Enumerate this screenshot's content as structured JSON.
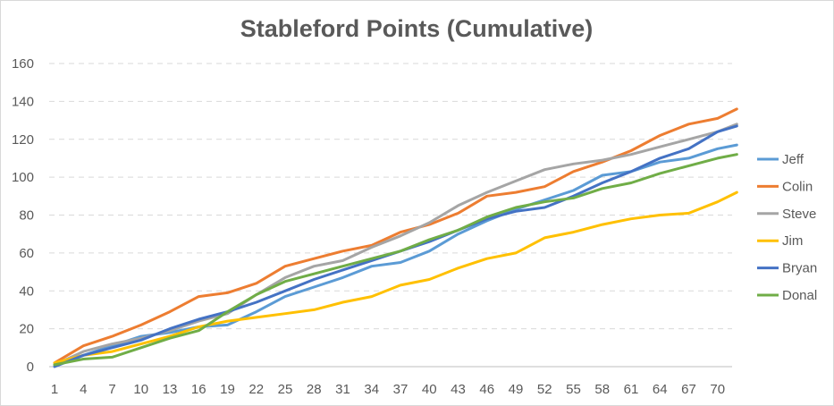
{
  "chart_data": {
    "type": "line",
    "title": "Stableford Points (Cumulative)",
    "xlabel": "",
    "ylabel": "",
    "ylim": [
      0,
      160
    ],
    "yticks": [
      0,
      20,
      40,
      60,
      80,
      100,
      120,
      140,
      160
    ],
    "xlim": [
      1,
      72
    ],
    "xticks": [
      1,
      4,
      7,
      10,
      13,
      16,
      19,
      22,
      25,
      28,
      31,
      34,
      37,
      40,
      43,
      46,
      49,
      52,
      55,
      58,
      61,
      64,
      67,
      70
    ],
    "grid": true,
    "legend_position": "right",
    "series": [
      {
        "name": "Jeff",
        "color": "#5B9BD5",
        "points": [
          [
            1,
            1
          ],
          [
            4,
            6
          ],
          [
            7,
            11
          ],
          [
            10,
            16
          ],
          [
            13,
            18
          ],
          [
            16,
            21
          ],
          [
            19,
            22
          ],
          [
            22,
            29
          ],
          [
            25,
            37
          ],
          [
            28,
            42
          ],
          [
            31,
            47
          ],
          [
            34,
            53
          ],
          [
            37,
            55
          ],
          [
            40,
            61
          ],
          [
            43,
            70
          ],
          [
            46,
            77
          ],
          [
            49,
            83
          ],
          [
            52,
            88
          ],
          [
            55,
            93
          ],
          [
            58,
            101
          ],
          [
            61,
            103
          ],
          [
            64,
            108
          ],
          [
            67,
            110
          ],
          [
            70,
            115
          ],
          [
            72,
            117
          ]
        ]
      },
      {
        "name": "Colin",
        "color": "#ED7D31",
        "points": [
          [
            1,
            2
          ],
          [
            4,
            11
          ],
          [
            7,
            16
          ],
          [
            10,
            22
          ],
          [
            13,
            29
          ],
          [
            16,
            37
          ],
          [
            19,
            39
          ],
          [
            22,
            44
          ],
          [
            25,
            53
          ],
          [
            28,
            57
          ],
          [
            31,
            61
          ],
          [
            34,
            64
          ],
          [
            37,
            71
          ],
          [
            40,
            75
          ],
          [
            43,
            81
          ],
          [
            46,
            90
          ],
          [
            49,
            92
          ],
          [
            52,
            95
          ],
          [
            55,
            103
          ],
          [
            58,
            108
          ],
          [
            61,
            114
          ],
          [
            64,
            122
          ],
          [
            67,
            128
          ],
          [
            70,
            131
          ],
          [
            72,
            136
          ]
        ]
      },
      {
        "name": "Steve",
        "color": "#A5A5A5",
        "points": [
          [
            1,
            1
          ],
          [
            4,
            8
          ],
          [
            7,
            12
          ],
          [
            10,
            15
          ],
          [
            13,
            19
          ],
          [
            16,
            24
          ],
          [
            19,
            28
          ],
          [
            22,
            38
          ],
          [
            25,
            47
          ],
          [
            28,
            53
          ],
          [
            31,
            56
          ],
          [
            34,
            63
          ],
          [
            37,
            69
          ],
          [
            40,
            76
          ],
          [
            43,
            85
          ],
          [
            46,
            92
          ],
          [
            49,
            98
          ],
          [
            52,
            104
          ],
          [
            55,
            107
          ],
          [
            58,
            109
          ],
          [
            61,
            112
          ],
          [
            64,
            116
          ],
          [
            67,
            120
          ],
          [
            70,
            124
          ],
          [
            72,
            128
          ]
        ]
      },
      {
        "name": "Jim",
        "color": "#FFC000",
        "points": [
          [
            1,
            2
          ],
          [
            4,
            6
          ],
          [
            7,
            8
          ],
          [
            10,
            12
          ],
          [
            13,
            16
          ],
          [
            16,
            21
          ],
          [
            19,
            24
          ],
          [
            22,
            26
          ],
          [
            25,
            28
          ],
          [
            28,
            30
          ],
          [
            31,
            34
          ],
          [
            34,
            37
          ],
          [
            37,
            43
          ],
          [
            40,
            46
          ],
          [
            43,
            52
          ],
          [
            46,
            57
          ],
          [
            49,
            60
          ],
          [
            52,
            68
          ],
          [
            55,
            71
          ],
          [
            58,
            75
          ],
          [
            61,
            78
          ],
          [
            64,
            80
          ],
          [
            67,
            81
          ],
          [
            70,
            87
          ],
          [
            72,
            92
          ]
        ]
      },
      {
        "name": "Bryan",
        "color": "#4472C4",
        "points": [
          [
            1,
            0
          ],
          [
            4,
            6
          ],
          [
            7,
            10
          ],
          [
            10,
            14
          ],
          [
            13,
            20
          ],
          [
            16,
            25
          ],
          [
            19,
            29
          ],
          [
            22,
            34
          ],
          [
            25,
            40
          ],
          [
            28,
            46
          ],
          [
            31,
            51
          ],
          [
            34,
            56
          ],
          [
            37,
            61
          ],
          [
            40,
            66
          ],
          [
            43,
            72
          ],
          [
            46,
            78
          ],
          [
            49,
            82
          ],
          [
            52,
            84
          ],
          [
            55,
            90
          ],
          [
            58,
            97
          ],
          [
            61,
            103
          ],
          [
            64,
            110
          ],
          [
            67,
            115
          ],
          [
            70,
            124
          ],
          [
            72,
            127
          ]
        ]
      },
      {
        "name": "Donal",
        "color": "#70AD47",
        "points": [
          [
            1,
            1
          ],
          [
            4,
            4
          ],
          [
            7,
            5
          ],
          [
            10,
            10
          ],
          [
            13,
            15
          ],
          [
            16,
            19
          ],
          [
            19,
            29
          ],
          [
            22,
            38
          ],
          [
            25,
            45
          ],
          [
            28,
            49
          ],
          [
            31,
            53
          ],
          [
            34,
            57
          ],
          [
            37,
            61
          ],
          [
            40,
            67
          ],
          [
            43,
            72
          ],
          [
            46,
            79
          ],
          [
            49,
            84
          ],
          [
            52,
            87
          ],
          [
            55,
            89
          ],
          [
            58,
            94
          ],
          [
            61,
            97
          ],
          [
            64,
            102
          ],
          [
            67,
            106
          ],
          [
            70,
            110
          ],
          [
            72,
            112
          ]
        ]
      }
    ]
  }
}
